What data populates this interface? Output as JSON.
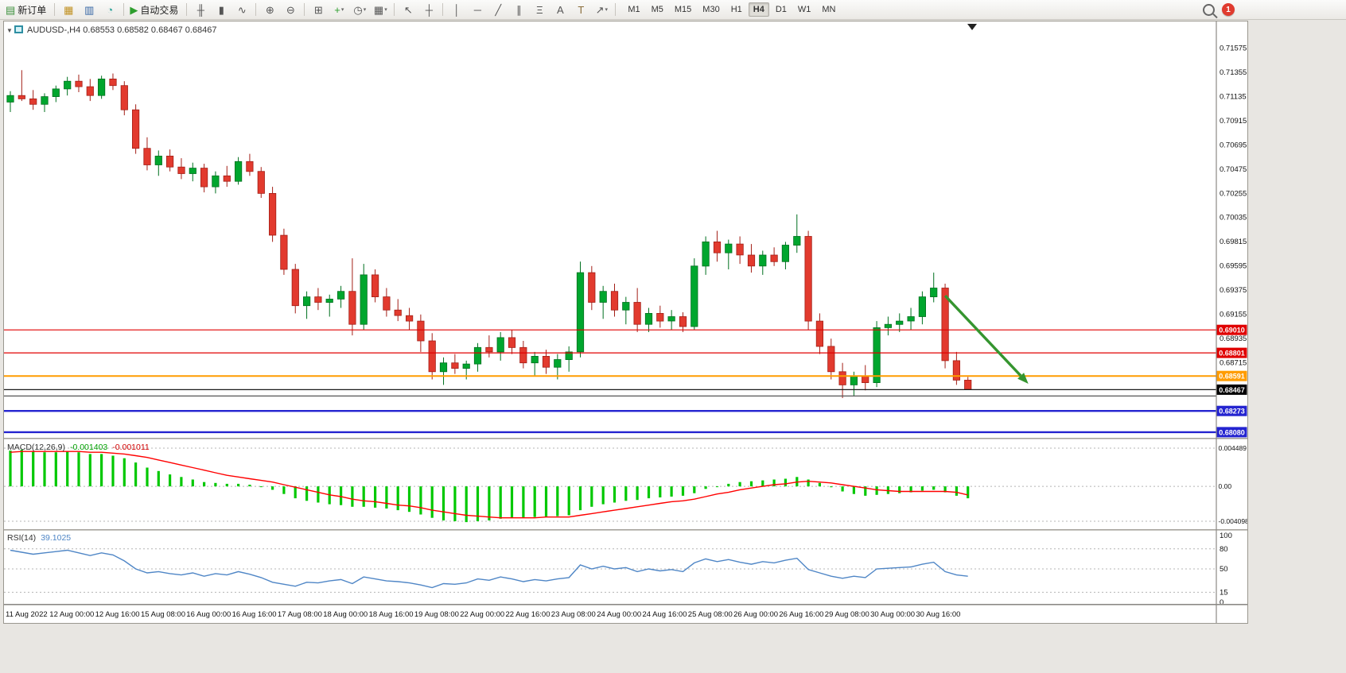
{
  "toolbar": {
    "groups": [
      {
        "items": [
          {
            "icon": "new-order-icon",
            "label": "新订单"
          }
        ]
      },
      {
        "items": [
          {
            "icon": "charts-icon"
          },
          {
            "icon": "market-watch-icon"
          },
          {
            "icon": "data-window-icon"
          }
        ]
      },
      {
        "items": [
          {
            "icon": "auto-trading-icon",
            "label": "自动交易"
          }
        ]
      },
      {
        "items": [
          {
            "icon": "bar-chart-icon"
          },
          {
            "icon": "candlestick-icon"
          },
          {
            "icon": "line-chart-icon"
          }
        ]
      },
      {
        "items": [
          {
            "icon": "zoom-in-icon"
          },
          {
            "icon": "zoom-out-icon"
          }
        ]
      },
      {
        "items": [
          {
            "icon": "tile-windows-icon"
          },
          {
            "icon": "indicators-icon",
            "caret": true
          },
          {
            "icon": "period-icon",
            "caret": true
          },
          {
            "icon": "template-icon",
            "caret": true
          }
        ]
      },
      {
        "items": [
          {
            "icon": "cursor-icon"
          },
          {
            "icon": "crosshair-icon"
          }
        ]
      },
      {
        "items": [
          {
            "icon": "vline-icon"
          },
          {
            "icon": "hline-icon"
          },
          {
            "icon": "trendline-icon"
          },
          {
            "icon": "channel-icon"
          },
          {
            "icon": "fibonacci-icon"
          },
          {
            "icon": "text-icon"
          },
          {
            "icon": "label-icon"
          },
          {
            "icon": "shapes-icon",
            "caret": true
          }
        ]
      }
    ],
    "timeframes": [
      "M1",
      "M5",
      "M15",
      "M30",
      "H1",
      "H4",
      "D1",
      "W1",
      "MN"
    ],
    "active_timeframe": "H4",
    "notification_count": "1"
  },
  "chart": {
    "header": {
      "symbol": "AUDUSD-",
      "period": "H4",
      "open": "0.68553",
      "high": "0.68582",
      "low": "0.68467",
      "close": "0.68467",
      "text": "AUDUSD-,H4  0.68553 0.68582 0.68467 0.68467"
    },
    "y_axis_labels": [
      "0.71575",
      "0.71355",
      "0.71135",
      "0.70915",
      "0.70695",
      "0.70475",
      "0.70255",
      "0.70035",
      "0.69815",
      "0.69595",
      "0.69375",
      "0.69155",
      "0.68935",
      "0.68715"
    ],
    "x_axis_labels": [
      "11 Aug 2022",
      "12 Aug 00:00",
      "12 Aug 16:00",
      "15 Aug 08:00",
      "16 Aug 00:00",
      "16 Aug 16:00",
      "17 Aug 08:00",
      "18 Aug 00:00",
      "18 Aug 16:00",
      "19 Aug 08:00",
      "22 Aug 00:00",
      "22 Aug 16:00",
      "23 Aug 08:00",
      "24 Aug 00:00",
      "24 Aug 16:00",
      "25 Aug 08:00",
      "26 Aug 00:00",
      "26 Aug 16:00",
      "29 Aug 08:00",
      "30 Aug 00:00",
      "30 Aug 16:00"
    ],
    "levels": [
      {
        "label": "0.69010",
        "value": 0.6901,
        "color": "#e00000",
        "width": 1.2,
        "tag": true
      },
      {
        "label": "0.68801",
        "value": 0.68801,
        "color": "#e00000",
        "width": 1.2,
        "tag": true
      },
      {
        "label": "0.68591",
        "value": 0.68591,
        "color": "#ff9c00",
        "width": 2,
        "tag": true
      },
      {
        "label": "0.68467",
        "value": 0.68467,
        "color": "#1a1a1a",
        "width": 1.2,
        "tag": true,
        "tag_bg": "#000000"
      },
      {
        "label": "",
        "value": 0.68409,
        "color": "#555555",
        "width": 1.2,
        "tag": false
      },
      {
        "label": "0.68273",
        "value": 0.68273,
        "color": "#2424d0",
        "width": 2.4,
        "tag": true
      },
      {
        "label": "0.68080",
        "value": 0.6808,
        "color": "#2424d0",
        "width": 2.4,
        "tag": true
      }
    ],
    "arrow": {
      "from_bar": 82,
      "from_price": 0.6932,
      "to_bar": 89.3,
      "to_price": 0.6852,
      "color": "#35952f"
    }
  },
  "chart_data": {
    "type": "candlestick",
    "symbol": "AUDUSD-",
    "timeframe": "H4",
    "candles": [
      [
        0.7108,
        0.7118,
        0.7099,
        0.7114
      ],
      [
        0.7114,
        0.7137,
        0.7109,
        0.7111
      ],
      [
        0.7111,
        0.7119,
        0.7101,
        0.7106
      ],
      [
        0.7106,
        0.7116,
        0.7099,
        0.7113
      ],
      [
        0.7113,
        0.7123,
        0.7108,
        0.712
      ],
      [
        0.712,
        0.7131,
        0.7114,
        0.7127
      ],
      [
        0.7127,
        0.7133,
        0.7117,
        0.7122
      ],
      [
        0.7122,
        0.7129,
        0.7109,
        0.7114
      ],
      [
        0.7114,
        0.7132,
        0.7111,
        0.7129
      ],
      [
        0.7129,
        0.7134,
        0.7119,
        0.7123
      ],
      [
        0.7123,
        0.7127,
        0.7096,
        0.7101
      ],
      [
        0.7101,
        0.7106,
        0.7061,
        0.7066
      ],
      [
        0.7066,
        0.7076,
        0.7046,
        0.7051
      ],
      [
        0.7051,
        0.7064,
        0.7041,
        0.7059
      ],
      [
        0.7059,
        0.7065,
        0.7045,
        0.7049
      ],
      [
        0.7049,
        0.7057,
        0.7038,
        0.7043
      ],
      [
        0.7043,
        0.7053,
        0.7036,
        0.7048
      ],
      [
        0.7048,
        0.7052,
        0.7026,
        0.7031
      ],
      [
        0.7031,
        0.7045,
        0.7025,
        0.7041
      ],
      [
        0.7041,
        0.705,
        0.7031,
        0.7036
      ],
      [
        0.7036,
        0.7058,
        0.7033,
        0.7054
      ],
      [
        0.7054,
        0.7061,
        0.7041,
        0.7045
      ],
      [
        0.7045,
        0.7049,
        0.7021,
        0.7025
      ],
      [
        0.7025,
        0.7031,
        0.6981,
        0.6987
      ],
      [
        0.6987,
        0.6993,
        0.6951,
        0.6956
      ],
      [
        0.6956,
        0.6961,
        0.6916,
        0.6923
      ],
      [
        0.6923,
        0.6936,
        0.6911,
        0.6931
      ],
      [
        0.6931,
        0.6939,
        0.6919,
        0.6926
      ],
      [
        0.6926,
        0.6933,
        0.6913,
        0.6929
      ],
      [
        0.6929,
        0.6941,
        0.6921,
        0.6936
      ],
      [
        0.6936,
        0.6966,
        0.6896,
        0.6906
      ],
      [
        0.6906,
        0.6961,
        0.6901,
        0.6951
      ],
      [
        0.6951,
        0.6956,
        0.6926,
        0.6931
      ],
      [
        0.6931,
        0.6939,
        0.6913,
        0.6919
      ],
      [
        0.6919,
        0.6929,
        0.6909,
        0.6914
      ],
      [
        0.6914,
        0.6921,
        0.6901,
        0.6909
      ],
      [
        0.6909,
        0.6915,
        0.6881,
        0.6891
      ],
      [
        0.6891,
        0.6898,
        0.6856,
        0.6863
      ],
      [
        0.6863,
        0.6876,
        0.6851,
        0.6871
      ],
      [
        0.6871,
        0.6879,
        0.6861,
        0.6866
      ],
      [
        0.6866,
        0.6873,
        0.6856,
        0.687
      ],
      [
        0.687,
        0.6889,
        0.6863,
        0.6885
      ],
      [
        0.6885,
        0.6896,
        0.6876,
        0.6881
      ],
      [
        0.6881,
        0.6899,
        0.6873,
        0.6894
      ],
      [
        0.6894,
        0.6901,
        0.6879,
        0.6885
      ],
      [
        0.6885,
        0.6891,
        0.6866,
        0.6871
      ],
      [
        0.6871,
        0.6881,
        0.6859,
        0.6877
      ],
      [
        0.6877,
        0.6883,
        0.6861,
        0.6867
      ],
      [
        0.6867,
        0.6879,
        0.6856,
        0.6874
      ],
      [
        0.6874,
        0.6886,
        0.6863,
        0.6881
      ],
      [
        0.6881,
        0.6963,
        0.6876,
        0.6953
      ],
      [
        0.6953,
        0.6959,
        0.6919,
        0.6926
      ],
      [
        0.6926,
        0.6941,
        0.6911,
        0.6936
      ],
      [
        0.6936,
        0.6943,
        0.6913,
        0.6919
      ],
      [
        0.6919,
        0.6931,
        0.6906,
        0.6926
      ],
      [
        0.6926,
        0.6939,
        0.6899,
        0.6906
      ],
      [
        0.6906,
        0.6921,
        0.6899,
        0.6916
      ],
      [
        0.6916,
        0.6923,
        0.6903,
        0.6909
      ],
      [
        0.6909,
        0.6919,
        0.6901,
        0.6913
      ],
      [
        0.6913,
        0.6917,
        0.6899,
        0.6904
      ],
      [
        0.6904,
        0.6966,
        0.6901,
        0.6959
      ],
      [
        0.6959,
        0.6986,
        0.6951,
        0.6981
      ],
      [
        0.6981,
        0.6991,
        0.6963,
        0.6971
      ],
      [
        0.6971,
        0.6983,
        0.6956,
        0.6979
      ],
      [
        0.6979,
        0.6986,
        0.6961,
        0.6969
      ],
      [
        0.6969,
        0.6979,
        0.6953,
        0.6959
      ],
      [
        0.6959,
        0.6973,
        0.6951,
        0.6969
      ],
      [
        0.6969,
        0.6976,
        0.6959,
        0.6963
      ],
      [
        0.6963,
        0.6981,
        0.6956,
        0.6978
      ],
      [
        0.6978,
        0.7006,
        0.6971,
        0.6986
      ],
      [
        0.6986,
        0.6991,
        0.6901,
        0.6909
      ],
      [
        0.6909,
        0.6916,
        0.6879,
        0.6886
      ],
      [
        0.6886,
        0.6893,
        0.6856,
        0.6863
      ],
      [
        0.6863,
        0.6871,
        0.6839,
        0.6851
      ],
      [
        0.6851,
        0.6863,
        0.6841,
        0.6859
      ],
      [
        0.6859,
        0.6869,
        0.6846,
        0.6853
      ],
      [
        0.6853,
        0.6909,
        0.6849,
        0.6903
      ],
      [
        0.6903,
        0.6913,
        0.6896,
        0.6906
      ],
      [
        0.6906,
        0.6916,
        0.6899,
        0.6909
      ],
      [
        0.6909,
        0.6921,
        0.6901,
        0.6913
      ],
      [
        0.6913,
        0.6936,
        0.6906,
        0.6931
      ],
      [
        0.6931,
        0.6953,
        0.6926,
        0.6939
      ],
      [
        0.6939,
        0.6943,
        0.6866,
        0.6873
      ],
      [
        0.6873,
        0.6881,
        0.6851,
        0.68553
      ],
      [
        0.68553,
        0.68582,
        0.68467,
        0.68467
      ]
    ],
    "macd": {
      "label": "MACD(12,26,9)",
      "value_text": "-0.001403",
      "signal_text": "-0.001011",
      "axis": [
        "0.004489",
        "0.00",
        "-0.004098"
      ],
      "values": [
        0.0042,
        0.0043,
        0.0041,
        0.004,
        0.004,
        0.0041,
        0.004,
        0.0038,
        0.0038,
        0.0036,
        0.0033,
        0.0028,
        0.0022,
        0.0018,
        0.0014,
        0.0011,
        0.0008,
        0.0005,
        0.0004,
        0.0003,
        0.0003,
        0.0002,
        0.0,
        -0.0004,
        -0.0009,
        -0.0014,
        -0.0017,
        -0.0019,
        -0.0021,
        -0.0022,
        -0.0024,
        -0.0024,
        -0.0025,
        -0.0026,
        -0.0028,
        -0.003,
        -0.0033,
        -0.0037,
        -0.004,
        -0.0041,
        -0.0042,
        -0.0041,
        -0.004,
        -0.0038,
        -0.0037,
        -0.0037,
        -0.0036,
        -0.0036,
        -0.0035,
        -0.0034,
        -0.0028,
        -0.0024,
        -0.0021,
        -0.0019,
        -0.0017,
        -0.0016,
        -0.0014,
        -0.0013,
        -0.0012,
        -0.0011,
        -0.0008,
        -0.0003,
        0.0,
        0.0003,
        0.0005,
        0.0006,
        0.0007,
        0.0008,
        0.0009,
        0.0011,
        0.0008,
        0.0004,
        -0.0001,
        -0.0006,
        -0.0009,
        -0.0011,
        -0.001,
        -0.0009,
        -0.0008,
        -0.0007,
        -0.0005,
        -0.0004,
        -0.0007,
        -0.0011,
        -0.001403
      ],
      "signal": [
        0.004,
        0.0041,
        0.0041,
        0.0041,
        0.0041,
        0.0041,
        0.0041,
        0.004,
        0.004,
        0.0039,
        0.0038,
        0.0036,
        0.0034,
        0.0031,
        0.0028,
        0.0025,
        0.0022,
        0.0019,
        0.0016,
        0.0013,
        0.0011,
        0.0009,
        0.0007,
        0.0005,
        0.0002,
        -0.0001,
        -0.0004,
        -0.0007,
        -0.001,
        -0.0012,
        -0.0015,
        -0.0017,
        -0.0018,
        -0.002,
        -0.0022,
        -0.0023,
        -0.0025,
        -0.0028,
        -0.003,
        -0.0032,
        -0.0034,
        -0.0035,
        -0.0036,
        -0.0037,
        -0.0037,
        -0.0037,
        -0.0037,
        -0.0036,
        -0.0036,
        -0.0036,
        -0.0034,
        -0.0032,
        -0.003,
        -0.0028,
        -0.0026,
        -0.0024,
        -0.0022,
        -0.002,
        -0.0018,
        -0.0017,
        -0.0015,
        -0.0012,
        -0.0009,
        -0.0007,
        -0.0004,
        -0.0002,
        0.0,
        0.0002,
        0.0003,
        0.0005,
        0.0006,
        0.0005,
        0.0004,
        0.0002,
        0.0,
        -0.0002,
        -0.0004,
        -0.0005,
        -0.0006,
        -0.0006,
        -0.0006,
        -0.0006,
        -0.0006,
        -0.0007,
        -0.001011
      ]
    },
    "rsi": {
      "label": "RSI(14)",
      "value_text": "39.1025",
      "axis": [
        "100",
        "80",
        "50",
        "15",
        "0"
      ],
      "levels": [
        80,
        50,
        15
      ],
      "values": [
        78,
        75,
        72,
        74,
        76,
        78,
        74,
        70,
        74,
        71,
        62,
        50,
        44,
        46,
        43,
        41,
        44,
        39,
        43,
        41,
        46,
        42,
        37,
        30,
        27,
        24,
        30,
        29,
        32,
        34,
        28,
        38,
        35,
        32,
        31,
        29,
        26,
        22,
        28,
        27,
        29,
        35,
        33,
        38,
        35,
        31,
        34,
        32,
        35,
        37,
        56,
        50,
        54,
        50,
        52,
        46,
        50,
        47,
        49,
        46,
        59,
        65,
        61,
        64,
        60,
        57,
        61,
        59,
        63,
        66,
        49,
        44,
        39,
        36,
        39,
        37,
        50,
        51,
        52,
        53,
        57,
        60,
        46,
        41,
        39.1
      ]
    }
  }
}
